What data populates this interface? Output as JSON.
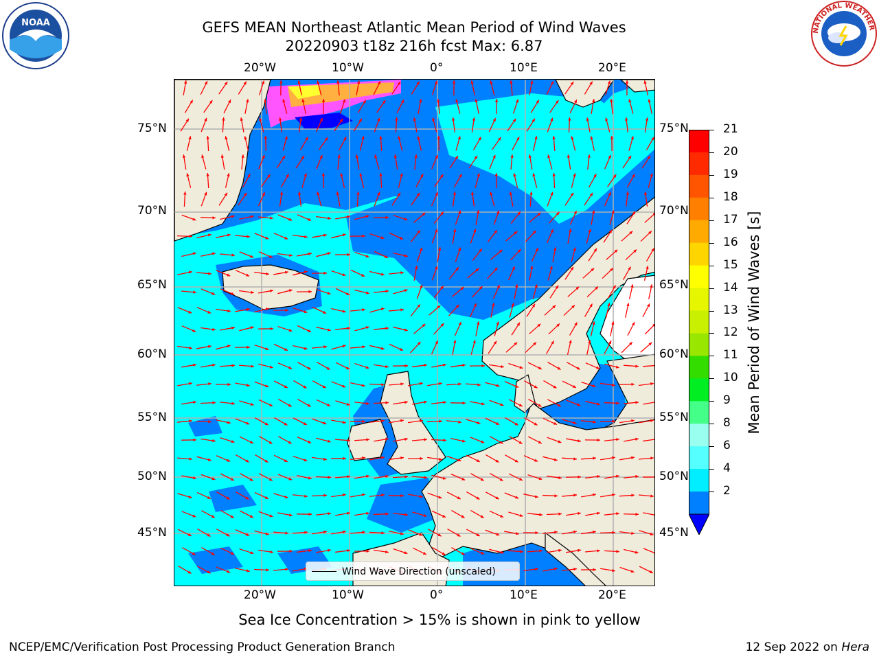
{
  "title_line1": "GEFS MEAN Northeast Atlantic Mean Period of Wind Waves",
  "title_line2": "20220903 t18z 216h fcst   Max: 6.87",
  "lon_labels": [
    "20°W",
    "10°W",
    "0°",
    "10°E",
    "20°E"
  ],
  "lat_labels": [
    "75°N",
    "70°N",
    "65°N",
    "60°N",
    "55°N",
    "50°N",
    "45°N"
  ],
  "colorbar": {
    "label": "Mean Period of Wind Waves [s]",
    "ticks": [
      "21",
      "20",
      "19",
      "18",
      "17",
      "16",
      "15",
      "14",
      "13",
      "12",
      "11",
      "10",
      "9",
      "8",
      "6",
      "4",
      "2"
    ],
    "colors": [
      "#ff0000",
      "#ff2a00",
      "#ff5500",
      "#ff8000",
      "#ffaa00",
      "#ffd500",
      "#ffff00",
      "#e6f500",
      "#c8f000",
      "#99e600",
      "#33dd00",
      "#00ee22",
      "#44ff88",
      "#99ffee",
      "#55ffff",
      "#00eeff",
      "#0080ff"
    ],
    "under_color": "#0000ff"
  },
  "legend_label": "Wind Wave Direction (unscaled)",
  "caption": "Sea Ice Concentration > 15% is shown in pink to yellow",
  "footer_left": "NCEP/EMC/Verification Post Processing Product Generation Branch",
  "footer_right_prefix": "12 Sep 2022 on ",
  "footer_right_host": "Hera",
  "logo_left_text": "NOAA",
  "logo_right_text": "NATIONAL WEATHER SERVICE",
  "colors": {
    "land": "#efecdc",
    "ocean_cyan": "#00ffff",
    "ocean_blue": "#0080ff",
    "deep_blue": "#0000ff",
    "arrow": "#ff0000",
    "ice_pink": "#ff55ff",
    "ice_orange": "#ffb040",
    "ice_yellow": "#ffff30"
  }
}
